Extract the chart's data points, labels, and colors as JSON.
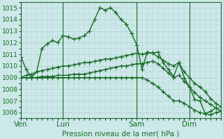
{
  "background_color": "#cce8e8",
  "grid_color": "#b0cece",
  "line_color": "#1a6b2a",
  "marker": "+",
  "markersize": 4,
  "linewidth": 1.0,
  "ylim": [
    1005.5,
    1015.5
  ],
  "yticks": [
    1006,
    1007,
    1008,
    1009,
    1010,
    1011,
    1012,
    1013,
    1014,
    1015
  ],
  "ylabel_fontsize": 6.5,
  "xlabel": "Pression niveau de la mer( hPa )",
  "xlabel_fontsize": 7.5,
  "xtick_labels": [
    "Ven",
    "Lun",
    "Sam",
    "Dim"
  ],
  "xtick_positions": [
    0,
    8,
    22,
    32
  ],
  "vlines": [
    0,
    8,
    22,
    32
  ],
  "n_points": 39,
  "series": [
    [
      1010.8,
      1009.7,
      1009.0,
      1009.5,
      1011.5,
      1011.9,
      1012.2,
      1012.0,
      1012.6,
      1012.5,
      1012.3,
      1012.4,
      1012.6,
      1013.0,
      1014.0,
      1015.0,
      1014.8,
      1015.0,
      1014.6,
      1014.0,
      1013.6,
      1012.8,
      1011.8,
      1009.7,
      1011.2,
      1011.1,
      1011.2,
      1010.3,
      1009.7,
      1009.1,
      1010.3,
      1009.0,
      1008.2,
      1007.1,
      1007.0,
      1005.9,
      1006.1,
      1006.4,
      1006.1
    ],
    [
      1009.0,
      1009.2,
      1009.3,
      1009.5,
      1009.6,
      1009.7,
      1009.8,
      1009.9,
      1010.0,
      1010.0,
      1010.1,
      1010.2,
      1010.3,
      1010.3,
      1010.4,
      1010.5,
      1010.6,
      1010.6,
      1010.7,
      1010.8,
      1010.9,
      1011.0,
      1011.1,
      1011.0,
      1011.1,
      1011.1,
      1010.8,
      1010.5,
      1010.2,
      1010.0,
      1010.3,
      1009.5,
      1009.0,
      1008.5,
      1008.2,
      1007.8,
      1007.2,
      1006.8,
      1006.5
    ],
    [
      1009.0,
      1009.0,
      1009.0,
      1009.0,
      1009.1,
      1009.1,
      1009.1,
      1009.2,
      1009.2,
      1009.2,
      1009.3,
      1009.3,
      1009.3,
      1009.4,
      1009.5,
      1009.6,
      1009.7,
      1009.8,
      1009.9,
      1010.0,
      1010.0,
      1010.1,
      1010.2,
      1010.2,
      1010.3,
      1010.4,
      1010.2,
      1009.8,
      1009.4,
      1009.0,
      1009.2,
      1008.7,
      1008.2,
      1007.7,
      1007.3,
      1007.0,
      1006.7,
      1006.4,
      1006.1
    ],
    [
      1009.0,
      1009.0,
      1009.0,
      1009.0,
      1009.0,
      1009.0,
      1009.0,
      1009.0,
      1009.0,
      1009.0,
      1009.0,
      1009.0,
      1009.0,
      1009.0,
      1009.0,
      1009.0,
      1009.0,
      1009.0,
      1009.0,
      1009.0,
      1009.0,
      1009.0,
      1009.0,
      1009.0,
      1008.8,
      1008.5,
      1008.2,
      1007.8,
      1007.4,
      1007.0,
      1007.0,
      1006.8,
      1006.5,
      1006.2,
      1006.0,
      1005.9,
      1005.8,
      1006.0,
      1006.1
    ]
  ]
}
